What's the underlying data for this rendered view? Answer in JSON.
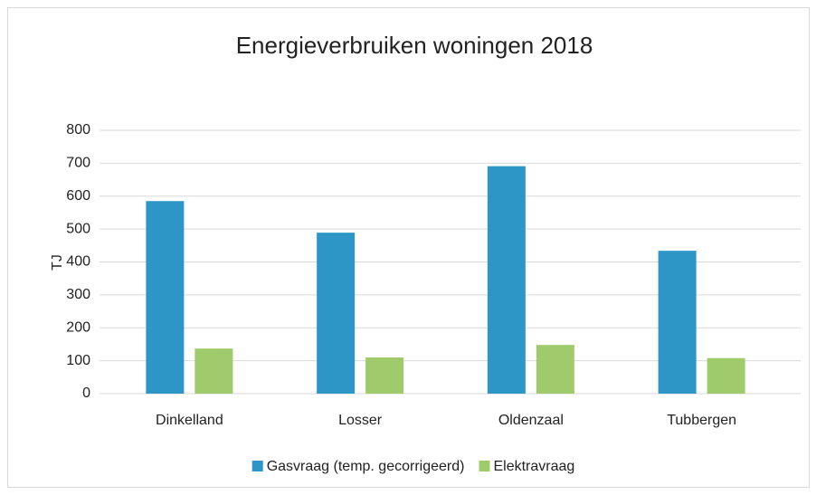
{
  "chart_data": {
    "type": "bar",
    "title": "Energieverbruiken woningen 2018",
    "ylabel": "TJ",
    "categories": [
      "Dinkelland",
      "Losser",
      "Oldenzaal",
      "Tubbergen"
    ],
    "series": [
      {
        "name": "Gasvraag (temp. gecorrigeerd)",
        "color": "#2e96c7",
        "values": [
          585,
          489,
          691,
          434
        ]
      },
      {
        "name": "Elektravraag",
        "color": "#9fcb6c",
        "values": [
          137,
          110,
          148,
          108
        ]
      }
    ],
    "ylim": [
      0,
      800
    ],
    "yticks": [
      0,
      100,
      200,
      300,
      400,
      500,
      600,
      700,
      800
    ],
    "grid": true,
    "legend": "bottom"
  }
}
